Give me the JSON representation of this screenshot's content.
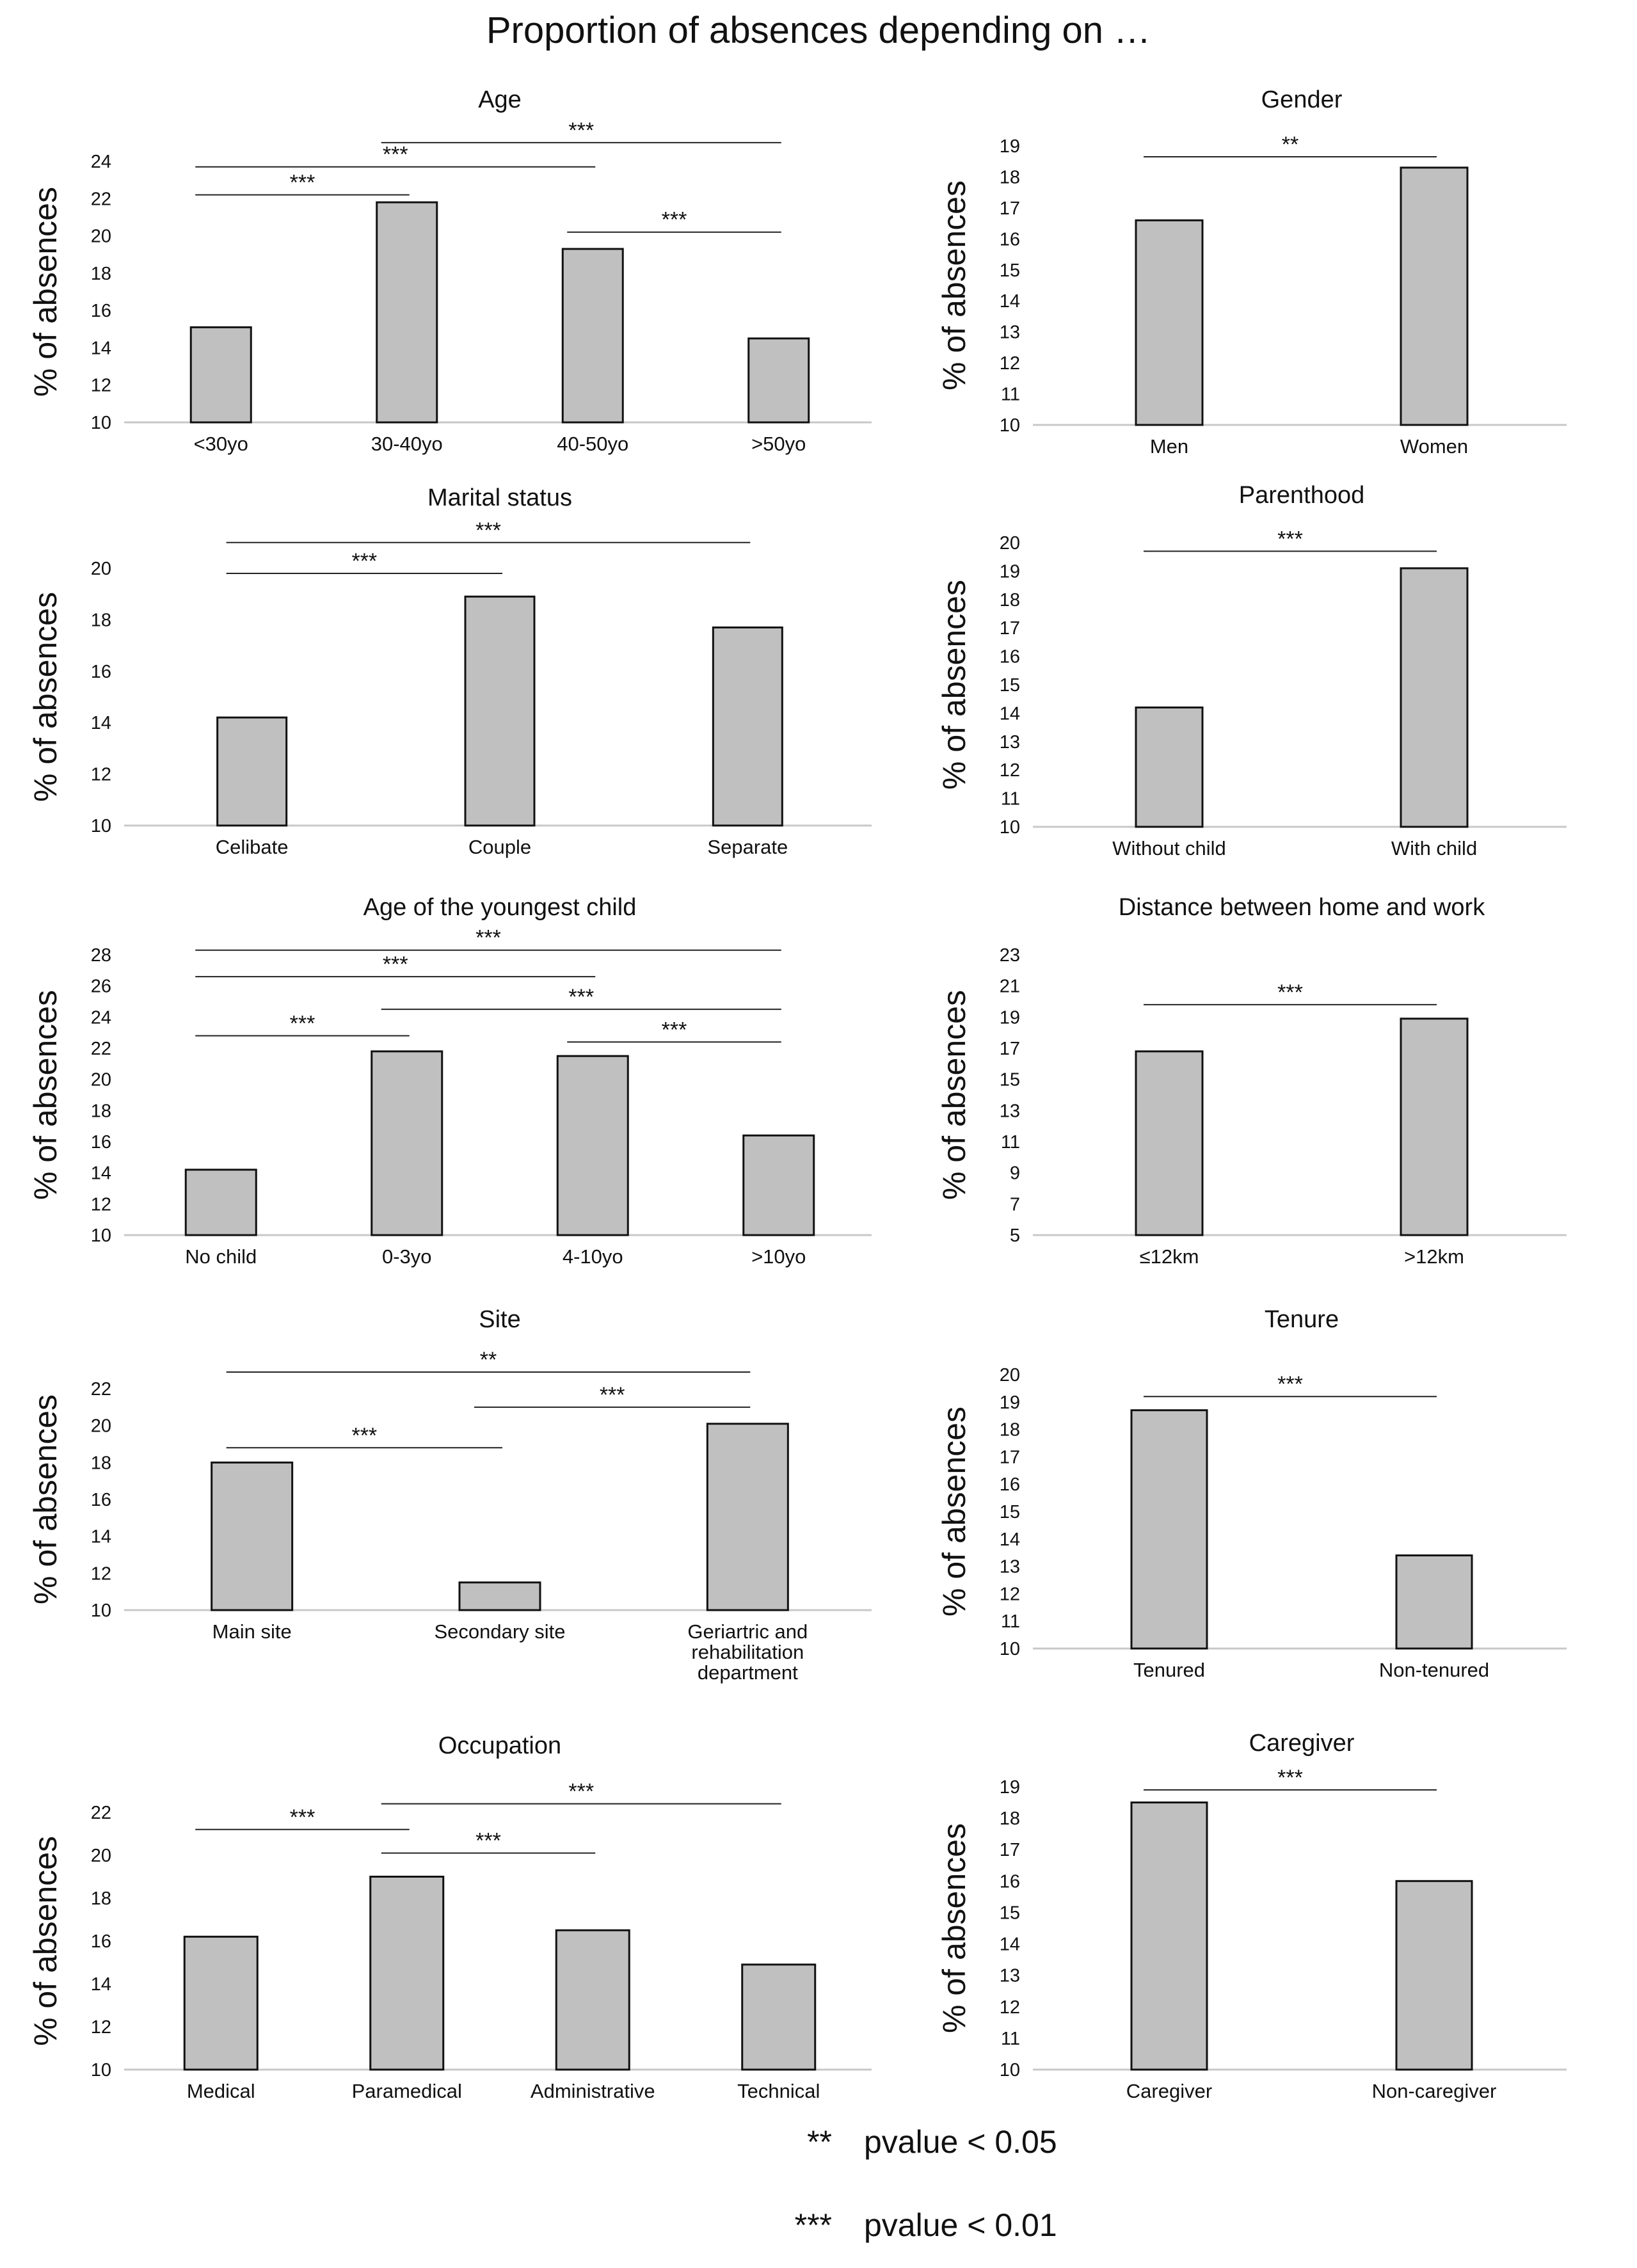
{
  "title": "Proportion of absences depending on …",
  "colors": {
    "bar_fill": "#c0c0c0",
    "bar_stroke": "#111111",
    "axis": "#c8c8c8",
    "text": "#111111",
    "sig_line": "#222222"
  },
  "legend": [
    {
      "symbol": "**",
      "text": "pvalue < 0.05"
    },
    {
      "symbol": "***",
      "text": "pvalue < 0.01"
    }
  ],
  "chart_data": [
    {
      "type": "bar",
      "title": "Age",
      "ylabel": "% of absences",
      "categories": [
        "<30yo",
        "30-40yo",
        "40-50yo",
        ">50yo"
      ],
      "values": [
        15.1,
        21.8,
        19.3,
        14.5
      ],
      "ylim": [
        10,
        24
      ],
      "yticks": [
        10,
        12,
        14,
        16,
        18,
        20,
        22,
        24
      ],
      "significance": [
        {
          "from": 0,
          "to": 1,
          "label": "***",
          "y": 22.2
        },
        {
          "from": 0,
          "to": 2,
          "label": "***",
          "y": 23.7
        },
        {
          "from": 1,
          "to": 3,
          "label": "***",
          "y": 25.0
        },
        {
          "from": 2,
          "to": 3,
          "label": "***",
          "y": 20.2
        }
      ]
    },
    {
      "type": "bar",
      "title": "Gender",
      "ylabel": "% of absences",
      "categories": [
        "Men",
        "Women"
      ],
      "values": [
        16.6,
        18.3
      ],
      "ylim": [
        10,
        19
      ],
      "yticks": [
        10,
        11,
        12,
        13,
        14,
        15,
        16,
        17,
        18,
        19
      ],
      "significance": [
        {
          "from": 0,
          "to": 1,
          "label": "**",
          "y": 18.65
        }
      ]
    },
    {
      "type": "bar",
      "title": "Marital status",
      "ylabel": "% of absences",
      "categories": [
        "Celibate",
        "Couple",
        "Separate"
      ],
      "values": [
        14.2,
        18.9,
        17.7
      ],
      "ylim": [
        10,
        20
      ],
      "yticks": [
        10,
        12,
        14,
        16,
        18,
        20
      ],
      "significance": [
        {
          "from": 0,
          "to": 1,
          "label": "***",
          "y": 19.8
        },
        {
          "from": 0,
          "to": 2,
          "label": "***",
          "y": 21.0
        }
      ]
    },
    {
      "type": "bar",
      "title": "Parenthood",
      "ylabel": "% of absences",
      "categories": [
        "Without child",
        "With child"
      ],
      "values": [
        14.2,
        19.1
      ],
      "ylim": [
        10,
        20
      ],
      "yticks": [
        10,
        11,
        12,
        13,
        14,
        15,
        16,
        17,
        18,
        19,
        20
      ],
      "significance": [
        {
          "from": 0,
          "to": 1,
          "label": "***",
          "y": 19.7
        }
      ]
    },
    {
      "type": "bar",
      "title": "Age of the youngest child",
      "ylabel": "% of absences",
      "categories": [
        "No child",
        "0-3yo",
        "4-10yo",
        ">10yo"
      ],
      "values": [
        14.2,
        21.8,
        21.5,
        16.4
      ],
      "ylim": [
        10,
        28
      ],
      "yticks": [
        10,
        12,
        14,
        16,
        18,
        20,
        22,
        24,
        26,
        28
      ],
      "significance": [
        {
          "from": 0,
          "to": 1,
          "label": "***",
          "y": 22.8
        },
        {
          "from": 1,
          "to": 3,
          "label": "***",
          "y": 24.5
        },
        {
          "from": 2,
          "to": 3,
          "label": "***",
          "y": 22.4
        },
        {
          "from": 0,
          "to": 2,
          "label": "***",
          "y": 26.6
        },
        {
          "from": 0,
          "to": 3,
          "label": "***",
          "y": 28.3
        }
      ]
    },
    {
      "type": "bar",
      "title": "Distance between home and work",
      "ylabel": "% of absences",
      "categories": [
        "≤12km",
        ">12km"
      ],
      "values": [
        16.8,
        18.9
      ],
      "ylim": [
        5,
        23
      ],
      "yticks": [
        5,
        7,
        9,
        11,
        13,
        15,
        17,
        19,
        21,
        23
      ],
      "significance": [
        {
          "from": 0,
          "to": 1,
          "label": "***",
          "y": 19.8
        }
      ]
    },
    {
      "type": "bar",
      "title": "Site",
      "ylabel": "% of absences",
      "categories": [
        "Main site",
        "Secondary site",
        "Geriartric and\nrehabilitation\ndepartment"
      ],
      "values": [
        18.0,
        11.5,
        20.1
      ],
      "ylim": [
        10,
        22
      ],
      "yticks": [
        10,
        12,
        14,
        16,
        18,
        20,
        22
      ],
      "significance": [
        {
          "from": 0,
          "to": 1,
          "label": "***",
          "y": 18.8
        },
        {
          "from": 1,
          "to": 2,
          "label": "***",
          "y": 21.0
        },
        {
          "from": 0,
          "to": 2,
          "label": "**",
          "y": 22.9
        }
      ]
    },
    {
      "type": "bar",
      "title": "Tenure",
      "ylabel": "% of absences",
      "categories": [
        "Tenured",
        "Non-tenured"
      ],
      "values": [
        18.7,
        13.4
      ],
      "ylim": [
        10,
        20
      ],
      "yticks": [
        10,
        11,
        12,
        13,
        14,
        15,
        16,
        17,
        18,
        19,
        20
      ],
      "significance": [
        {
          "from": 0,
          "to": 1,
          "label": "***",
          "y": 19.2
        }
      ]
    },
    {
      "type": "bar",
      "title": "Occupation",
      "ylabel": "% of absences",
      "categories": [
        "Medical",
        "Paramedical",
        "Administrative",
        "Technical"
      ],
      "values": [
        16.2,
        19.0,
        16.5,
        14.9
      ],
      "ylim": [
        10,
        22
      ],
      "yticks": [
        10,
        12,
        14,
        16,
        18,
        20,
        22
      ],
      "significance": [
        {
          "from": 0,
          "to": 1,
          "label": "***",
          "y": 21.2
        },
        {
          "from": 1,
          "to": 2,
          "label": "***",
          "y": 20.1
        },
        {
          "from": 1,
          "to": 3,
          "label": "***",
          "y": 22.4
        }
      ]
    },
    {
      "type": "bar",
      "title": "Caregiver",
      "ylabel": "% of absences",
      "categories": [
        "Caregiver",
        "Non-caregiver"
      ],
      "values": [
        18.5,
        16.0
      ],
      "ylim": [
        10,
        19
      ],
      "yticks": [
        10,
        11,
        12,
        13,
        14,
        15,
        16,
        17,
        18,
        19
      ],
      "significance": [
        {
          "from": 0,
          "to": 1,
          "label": "***",
          "y": 18.9
        }
      ]
    }
  ]
}
